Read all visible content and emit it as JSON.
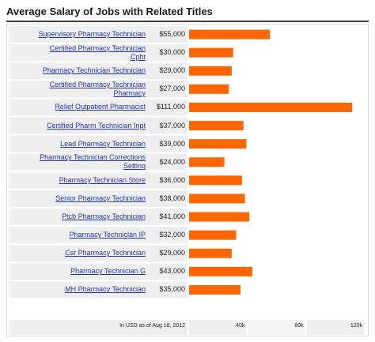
{
  "chart_data": {
    "type": "bar",
    "title": "Average Salary of Jobs with Related Titles",
    "note": "In USD as of Aug 18, 2012",
    "xlim": [
      0,
      120000
    ],
    "ticks": [
      {
        "value": 40000,
        "label": "40k"
      },
      {
        "value": 80000,
        "label": "80k"
      },
      {
        "value": 120000,
        "label": "120k"
      }
    ],
    "bar_color": "#ff6600",
    "rows": [
      {
        "label": [
          "Supervisory Pharmacy Technician"
        ],
        "salary": "$55,000",
        "value": 55000
      },
      {
        "label": [
          "Certified Pharmacy Technician",
          "Cpht"
        ],
        "salary": "$30,000",
        "value": 30000
      },
      {
        "label": [
          "Pharmacy Technician Technician"
        ],
        "salary": "$29,000",
        "value": 29000
      },
      {
        "label": [
          "Certified Pharmacy Technician",
          "Pharmacy"
        ],
        "salary": "$27,000",
        "value": 27000
      },
      {
        "label": [
          "Relief Outpatient Pharmacist"
        ],
        "salary": "$111,000",
        "value": 111000
      },
      {
        "label": [
          "Certified Pharm Technician Inpt"
        ],
        "salary": "$37,000",
        "value": 37000
      },
      {
        "label": [
          "Lead Pharmacy Technician"
        ],
        "salary": "$39,000",
        "value": 39000
      },
      {
        "label": [
          "Pharmacy Technician Corrections",
          "Setting"
        ],
        "salary": "$24,000",
        "value": 24000
      },
      {
        "label": [
          "Pharmacy Technician Store"
        ],
        "salary": "$36,000",
        "value": 36000
      },
      {
        "label": [
          "Senior Pharmacy Technician"
        ],
        "salary": "$38,000",
        "value": 38000
      },
      {
        "label": [
          "Ptcb Pharmacy Technician"
        ],
        "salary": "$41,000",
        "value": 41000
      },
      {
        "label": [
          "Pharmacy Technician IP"
        ],
        "salary": "$32,000",
        "value": 32000
      },
      {
        "label": [
          "Csr Pharmacy Technician"
        ],
        "salary": "$29,000",
        "value": 29000
      },
      {
        "label": [
          "Pharmacy Technician G"
        ],
        "salary": "$43,000",
        "value": 43000
      },
      {
        "label": [
          "MH Pharmacy Technician"
        ],
        "salary": "$35,000",
        "value": 35000
      }
    ]
  }
}
